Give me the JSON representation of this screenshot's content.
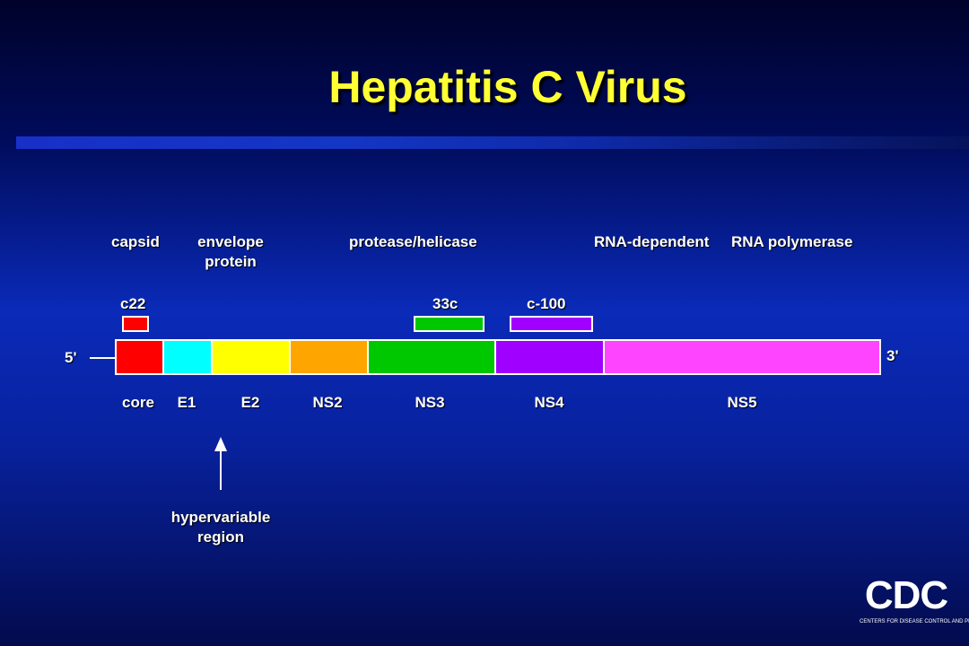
{
  "title": "Hepatitis C Virus",
  "functions": {
    "capsid": "capsid",
    "envelope_line1": "envelope",
    "envelope_line2": "protein",
    "protease": "protease/helicase",
    "polymerase_a": "RNA-dependent",
    "polymerase_b": "RNA polymerase"
  },
  "antigens": [
    {
      "label": "c22",
      "color": "#ff0000"
    },
    {
      "label": "33c",
      "color": "#00c800"
    },
    {
      "label": "c-100",
      "color": "#a000ff"
    }
  ],
  "ends": {
    "five": "5'",
    "three": "3'"
  },
  "segments": [
    {
      "label": "core",
      "color": "#ff0000"
    },
    {
      "label": "E1",
      "color": "#00ffff"
    },
    {
      "label": "E2",
      "color": "#ffff00"
    },
    {
      "label": "NS2",
      "color": "#ffa500"
    },
    {
      "label": "NS3",
      "color": "#00c800"
    },
    {
      "label": "NS4",
      "color": "#a000ff"
    },
    {
      "label": "NS5",
      "color": "#ff44ff"
    }
  ],
  "annotation": {
    "line1": "hypervariable",
    "line2": "region"
  },
  "logo": {
    "text": "CDC",
    "subtitle": "CENTERS FOR DISEASE CONTROL AND PREVENTION"
  }
}
